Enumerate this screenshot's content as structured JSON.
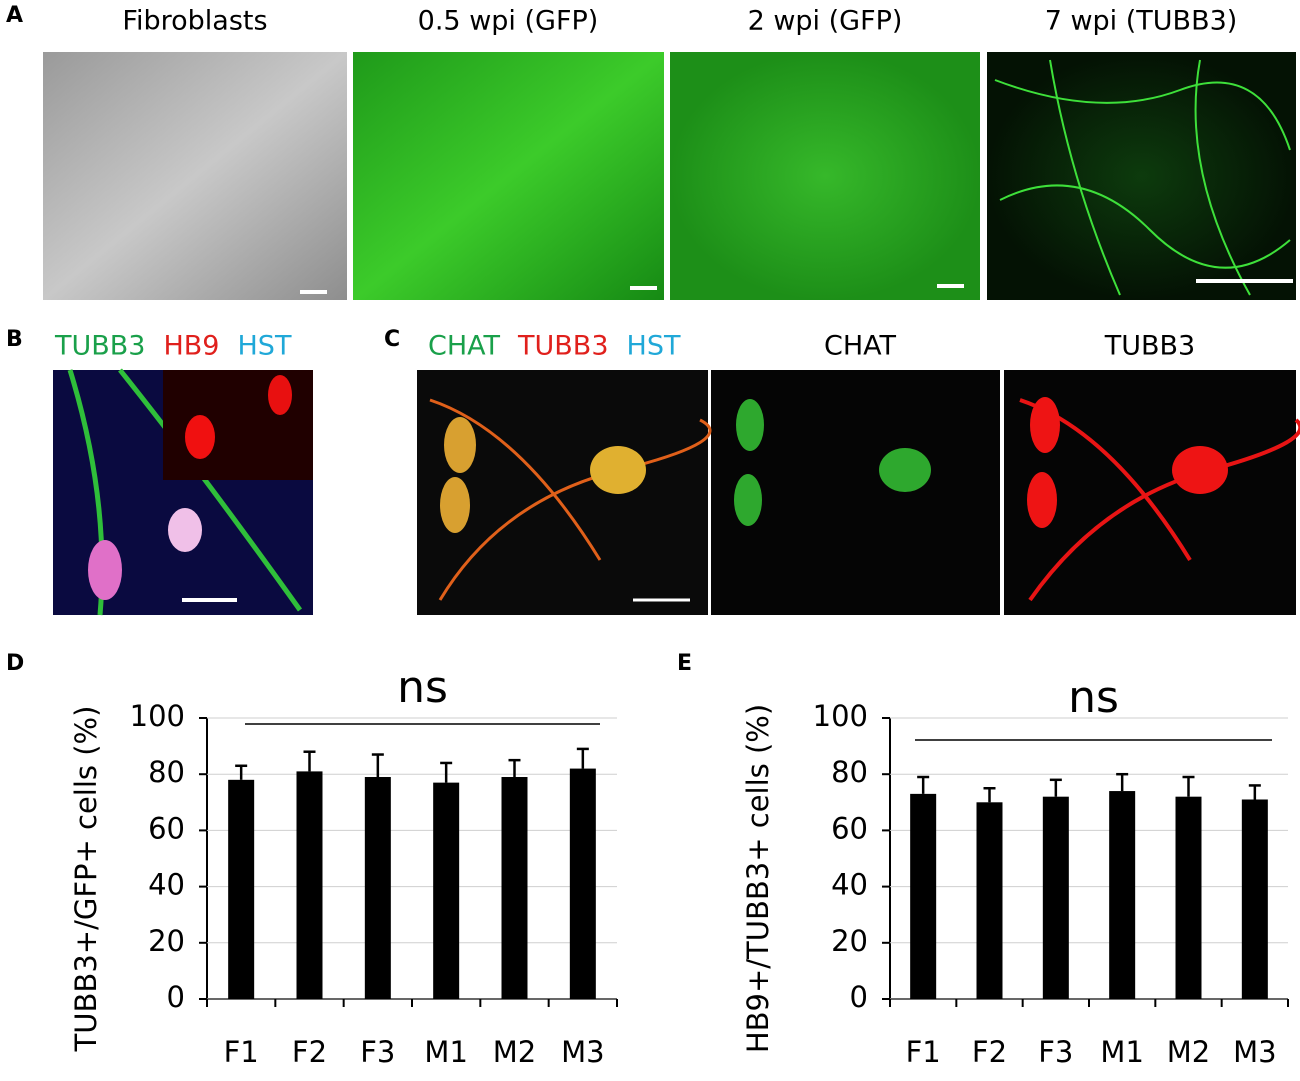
{
  "panels": {
    "a": {
      "letter": "A",
      "titles": [
        "Fibroblasts",
        "0.5 wpi (GFP)",
        "2 wpi (GFP)",
        "7 wpi (TUBB3)"
      ]
    },
    "b": {
      "letter": "B",
      "stains": [
        {
          "text": "TUBB3",
          "color": "#1aa04a"
        },
        {
          "text": "HB9",
          "color": "#e0201c"
        },
        {
          "text": "HST",
          "color": "#20a8d8"
        }
      ]
    },
    "c": {
      "letter": "C",
      "stains": [
        {
          "text": "CHAT",
          "color": "#1aa04a"
        },
        {
          "text": "TUBB3",
          "color": "#e0201c"
        },
        {
          "text": "HST",
          "color": "#20a8d8"
        }
      ],
      "titles": [
        "CHAT",
        "TUBB3"
      ]
    }
  },
  "chart_data": [
    {
      "type": "bar",
      "letter": "D",
      "annotation": "ns",
      "y_label": "TUBB3+/GFP+ cells (%)",
      "categories": [
        "F1",
        "F2",
        "F3",
        "M1",
        "M2",
        "M3"
      ],
      "values": [
        78,
        81,
        79,
        77,
        79,
        82
      ],
      "errors": [
        5,
        7,
        8,
        7,
        6,
        7
      ],
      "color": "#000000",
      "ylim": [
        0,
        100
      ],
      "yticks": [
        0,
        20,
        40,
        60,
        80,
        100
      ]
    },
    {
      "type": "bar",
      "letter": "E",
      "annotation": "ns",
      "y_label": "HB9+/TUBB3+ cells (%)",
      "categories": [
        "F1",
        "F2",
        "F3",
        "M1",
        "M2",
        "M3"
      ],
      "values": [
        73,
        70,
        72,
        74,
        72,
        71
      ],
      "errors": [
        6,
        5,
        6,
        6,
        7,
        5
      ],
      "color": "#000000",
      "ylim": [
        0,
        100
      ],
      "yticks": [
        0,
        20,
        40,
        60,
        80,
        100
      ]
    }
  ]
}
